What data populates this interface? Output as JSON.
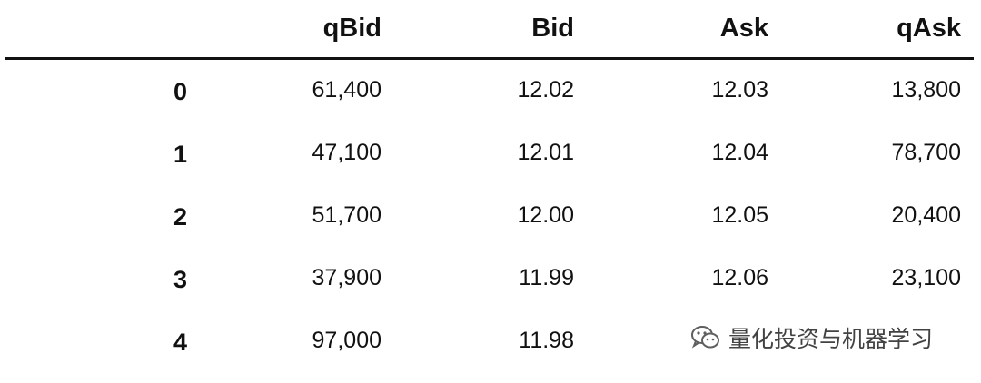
{
  "table": {
    "columns": [
      "qBid",
      "Bid",
      "Ask",
      "qAsk"
    ],
    "rows": [
      {
        "index": "0",
        "qBid": "61,400",
        "Bid": "12.02",
        "Ask": "12.03",
        "qAsk": "13,800"
      },
      {
        "index": "1",
        "qBid": "47,100",
        "Bid": "12.01",
        "Ask": "12.04",
        "qAsk": "78,700"
      },
      {
        "index": "2",
        "qBid": "51,700",
        "Bid": "12.00",
        "Ask": "12.05",
        "qAsk": "20,400"
      },
      {
        "index": "3",
        "qBid": "37,900",
        "Bid": "11.99",
        "Ask": "12.06",
        "qAsk": "23,100"
      },
      {
        "index": "4",
        "qBid": "97,000",
        "Bid": "11.98",
        "Ask": "",
        "qAsk": ""
      }
    ]
  },
  "watermark": {
    "text": "量化投资与机器学习",
    "icon": "wechat-icon"
  }
}
